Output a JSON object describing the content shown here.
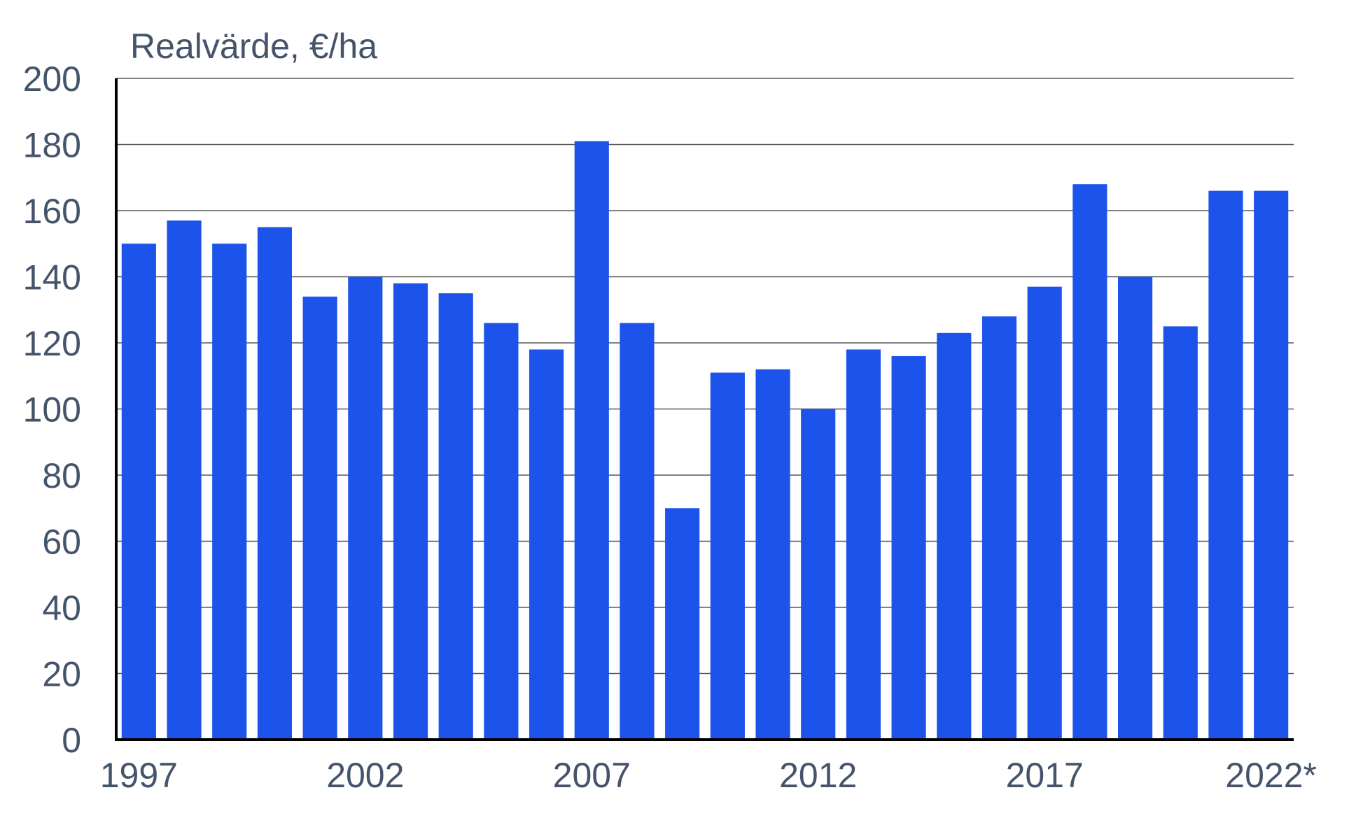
{
  "chart_data": {
    "type": "bar",
    "title": "",
    "ylabel": "Realvärde, €/ha",
    "xlabel": "",
    "ylim": [
      0,
      200
    ],
    "yticks": [
      0,
      20,
      40,
      60,
      80,
      100,
      120,
      140,
      160,
      180,
      200
    ],
    "grid": true,
    "bar_color": "#1c54eb",
    "categories": [
      "1997",
      "1998",
      "1999",
      "2000",
      "2001",
      "2002",
      "2003",
      "2004",
      "2005",
      "2006",
      "2007",
      "2008",
      "2009",
      "2010",
      "2011",
      "2012",
      "2013",
      "2014",
      "2015",
      "2016",
      "2017",
      "2018",
      "2019",
      "2020",
      "2021",
      "2022*"
    ],
    "xtick_labels": [
      "1997",
      "2002",
      "2007",
      "2012",
      "2017",
      "2022*"
    ],
    "values": [
      150,
      157,
      150,
      155,
      134,
      140,
      138,
      135,
      126,
      118,
      181,
      126,
      70,
      111,
      112,
      100,
      118,
      116,
      123,
      128,
      137,
      168,
      140,
      125,
      166,
      166
    ]
  }
}
